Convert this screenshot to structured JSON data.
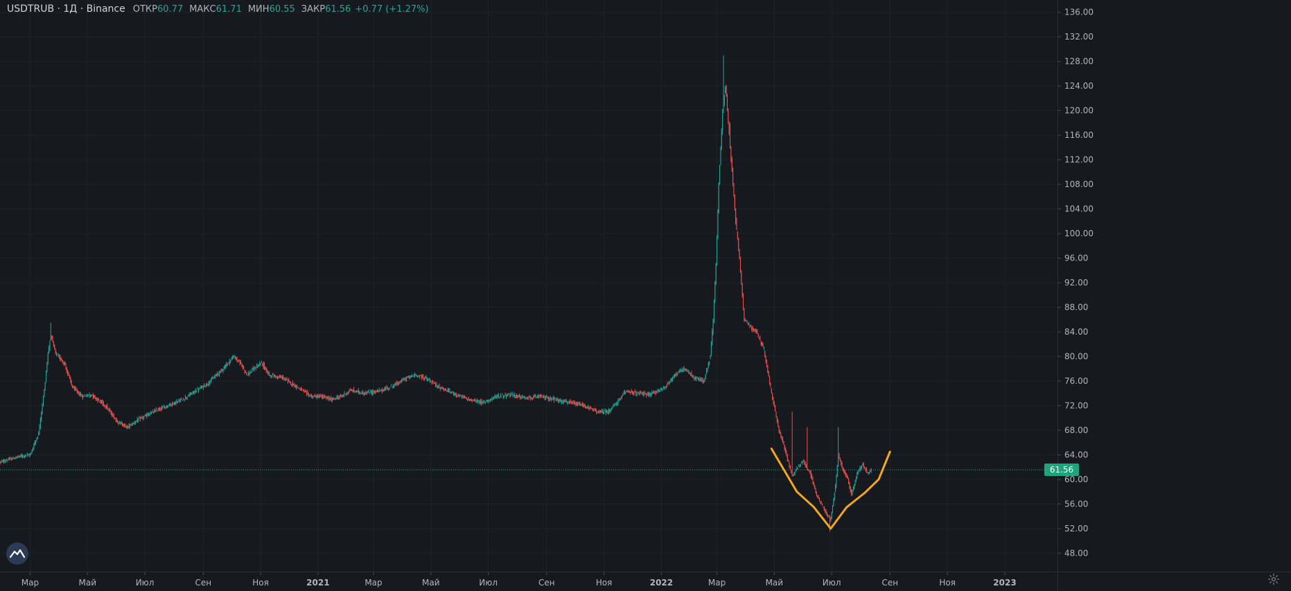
{
  "header": {
    "symbol": "USDTRUB · 1Д · Binance",
    "open_label": "ОТКР",
    "open": "60.77",
    "high_label": "МАКС",
    "high": "61.71",
    "low_label": "МИН",
    "low": "60.55",
    "close_label": "ЗАКР",
    "close": "61.56",
    "change": "+0.77 (+1.27%)"
  },
  "last_price_tag": "61.56",
  "colors": {
    "background": "#161a1f",
    "up": "#26a69a",
    "down": "#ef5350",
    "drawing": "#f5a623",
    "price_line": "#26a69a",
    "axis_text": "#b2b5be"
  },
  "icons": {
    "logo": "tradingview-logo-icon",
    "settings": "gear-icon"
  },
  "chart_data": {
    "type": "candlestick",
    "title": "USDTRUB · 1Д · Binance",
    "ylim": [
      45,
      138
    ],
    "y_ticks": [
      "48.00",
      "52.00",
      "56.00",
      "60.00",
      "64.00",
      "68.00",
      "72.00",
      "76.00",
      "80.00",
      "84.00",
      "88.00",
      "92.00",
      "96.00",
      "100.00",
      "104.00",
      "108.00",
      "112.00",
      "116.00",
      "120.00",
      "124.00",
      "128.00",
      "132.00",
      "136.00"
    ],
    "x_ticks": [
      {
        "label": "Мар",
        "date": "2020-03-01",
        "bold": false
      },
      {
        "label": "Май",
        "date": "2020-05-01",
        "bold": false
      },
      {
        "label": "Июл",
        "date": "2020-07-01",
        "bold": false
      },
      {
        "label": "Сен",
        "date": "2020-09-01",
        "bold": false
      },
      {
        "label": "Ноя",
        "date": "2020-11-01",
        "bold": false
      },
      {
        "label": "2021",
        "date": "2021-01-01",
        "bold": true
      },
      {
        "label": "Мар",
        "date": "2021-03-01",
        "bold": false
      },
      {
        "label": "Май",
        "date": "2021-05-01",
        "bold": false
      },
      {
        "label": "Июл",
        "date": "2021-07-01",
        "bold": false
      },
      {
        "label": "Сен",
        "date": "2021-09-01",
        "bold": false
      },
      {
        "label": "Ноя",
        "date": "2021-11-01",
        "bold": false
      },
      {
        "label": "2022",
        "date": "2022-01-01",
        "bold": true
      },
      {
        "label": "Мар",
        "date": "2022-03-01",
        "bold": false
      },
      {
        "label": "Май",
        "date": "2022-05-01",
        "bold": false
      },
      {
        "label": "Июл",
        "date": "2022-07-01",
        "bold": false
      },
      {
        "label": "Сен",
        "date": "2022-09-01",
        "bold": false
      },
      {
        "label": "Ноя",
        "date": "2022-11-01",
        "bold": false
      },
      {
        "label": "2023",
        "date": "2023-01-01",
        "bold": true
      }
    ],
    "x_range": [
      "2020-01-29",
      "2023-02-26"
    ],
    "last_price": 61.56,
    "price_path": [
      [
        "2020-01-29",
        62.8
      ],
      [
        "2020-02-20",
        63.8
      ],
      [
        "2020-03-01",
        64.0
      ],
      [
        "2020-03-10",
        67.5
      ],
      [
        "2020-03-16",
        74.5
      ],
      [
        "2020-03-20",
        80.5
      ],
      [
        "2020-03-23",
        83.5
      ],
      [
        "2020-03-28",
        80.5
      ],
      [
        "2020-04-06",
        79.0
      ],
      [
        "2020-04-15",
        75.0
      ],
      [
        "2020-04-25",
        73.5
      ],
      [
        "2020-05-05",
        73.8
      ],
      [
        "2020-05-20",
        72.0
      ],
      [
        "2020-06-01",
        69.5
      ],
      [
        "2020-06-12",
        68.5
      ],
      [
        "2020-06-25",
        69.8
      ],
      [
        "2020-07-10",
        71.0
      ],
      [
        "2020-07-25",
        72.0
      ],
      [
        "2020-08-10",
        73.0
      ],
      [
        "2020-08-25",
        74.5
      ],
      [
        "2020-09-05",
        75.5
      ],
      [
        "2020-09-15",
        77.0
      ],
      [
        "2020-09-25",
        78.5
      ],
      [
        "2020-10-03",
        80.0
      ],
      [
        "2020-10-10",
        79.0
      ],
      [
        "2020-10-18",
        77.0
      ],
      [
        "2020-10-25",
        78.0
      ],
      [
        "2020-11-02",
        79.0
      ],
      [
        "2020-11-10",
        77.0
      ],
      [
        "2020-11-25",
        76.5
      ],
      [
        "2020-12-10",
        75.0
      ],
      [
        "2020-12-25",
        73.5
      ],
      [
        "2021-01-05",
        73.5
      ],
      [
        "2021-01-15",
        73.0
      ],
      [
        "2021-01-25",
        73.5
      ],
      [
        "2021-02-05",
        74.5
      ],
      [
        "2021-02-20",
        74.0
      ],
      [
        "2021-03-10",
        74.5
      ],
      [
        "2021-03-25",
        75.5
      ],
      [
        "2021-04-05",
        76.5
      ],
      [
        "2021-04-15",
        77.0
      ],
      [
        "2021-04-25",
        76.5
      ],
      [
        "2021-05-10",
        75.0
      ],
      [
        "2021-05-25",
        74.0
      ],
      [
        "2021-06-10",
        73.0
      ],
      [
        "2021-06-25",
        72.5
      ],
      [
        "2021-07-10",
        73.5
      ],
      [
        "2021-07-25",
        73.8
      ],
      [
        "2021-08-10",
        73.2
      ],
      [
        "2021-08-25",
        73.5
      ],
      [
        "2021-09-10",
        73.0
      ],
      [
        "2021-09-25",
        72.5
      ],
      [
        "2021-10-10",
        72.0
      ],
      [
        "2021-10-25",
        71.0
      ],
      [
        "2021-11-05",
        71.0
      ],
      [
        "2021-11-15",
        72.5
      ],
      [
        "2021-11-25",
        74.5
      ],
      [
        "2021-12-05",
        74.0
      ],
      [
        "2021-12-20",
        73.8
      ],
      [
        "2022-01-05",
        75.0
      ],
      [
        "2022-01-15",
        77.0
      ],
      [
        "2022-01-25",
        78.0
      ],
      [
        "2022-02-05",
        76.5
      ],
      [
        "2022-02-15",
        76.0
      ],
      [
        "2022-02-22",
        80.0
      ],
      [
        "2022-02-25",
        86.0
      ],
      [
        "2022-02-28",
        95.0
      ],
      [
        "2022-03-03",
        108.0
      ],
      [
        "2022-03-07",
        120.0
      ],
      [
        "2022-03-10",
        124.0
      ],
      [
        "2022-03-14",
        116.0
      ],
      [
        "2022-03-17",
        110.0
      ],
      [
        "2022-03-21",
        102.0
      ],
      [
        "2022-03-25",
        96.0
      ],
      [
        "2022-03-30",
        86.0
      ],
      [
        "2022-04-05",
        85.0
      ],
      [
        "2022-04-12",
        84.0
      ],
      [
        "2022-04-20",
        81.0
      ],
      [
        "2022-04-28",
        74.0
      ],
      [
        "2022-05-06",
        68.0
      ],
      [
        "2022-05-12",
        65.0
      ],
      [
        "2022-05-20",
        60.5
      ],
      [
        "2022-05-26",
        62.0
      ],
      [
        "2022-06-01",
        63.0
      ],
      [
        "2022-06-08",
        61.0
      ],
      [
        "2022-06-15",
        57.5
      ],
      [
        "2022-06-25",
        54.5
      ],
      [
        "2022-06-30",
        53.5
      ],
      [
        "2022-07-05",
        59.0
      ],
      [
        "2022-07-08",
        64.0
      ],
      [
        "2022-07-12",
        62.0
      ],
      [
        "2022-07-18",
        60.0
      ],
      [
        "2022-07-22",
        57.5
      ],
      [
        "2022-07-28",
        61.0
      ],
      [
        "2022-08-03",
        62.5
      ],
      [
        "2022-08-08",
        61.0
      ],
      [
        "2022-08-12",
        61.56
      ]
    ],
    "spikes": [
      {
        "date": "2020-03-23",
        "high": 85.5
      },
      {
        "date": "2022-03-08",
        "high": 129.0
      },
      {
        "date": "2022-03-15",
        "high": 118.0
      },
      {
        "date": "2022-05-20",
        "high": 71.0
      },
      {
        "date": "2022-06-05",
        "high": 68.5
      },
      {
        "date": "2022-07-08",
        "high": 68.5
      },
      {
        "date": "2022-06-29",
        "low": 51.5
      }
    ],
    "drawing_v_shape": [
      {
        "date": "2022-04-28",
        "value": 65.0
      },
      {
        "date": "2022-05-25",
        "value": 58.0
      },
      {
        "date": "2022-06-12",
        "value": 55.5
      },
      {
        "date": "2022-06-30",
        "value": 52.0
      },
      {
        "date": "2022-07-17",
        "value": 55.5
      },
      {
        "date": "2022-08-05",
        "value": 57.8
      },
      {
        "date": "2022-08-20",
        "value": 60.0
      },
      {
        "date": "2022-09-01",
        "value": 64.5
      }
    ]
  }
}
